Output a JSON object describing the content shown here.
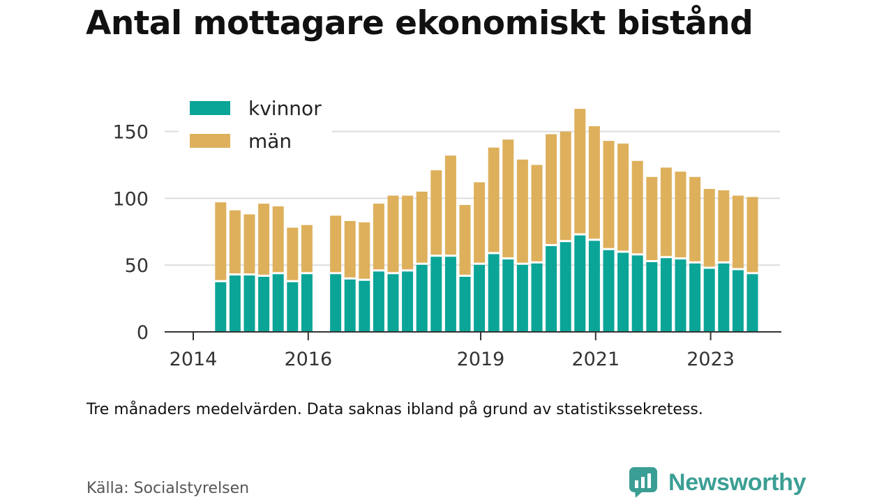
{
  "title": "Antal mottagare ekonomiskt bistånd",
  "note": "Tre månaders medelvärden. Data saknas ibland på grund av statistikssekretess.",
  "source": "Källa: Socialstyrelsen",
  "brand": {
    "name": "Newsworthy",
    "icon": "newsworthy-logo-icon",
    "color": "#3b9e94"
  },
  "colors": {
    "kvinnor": "#0aa597",
    "man": "#deb05c",
    "grid": "#dddddd",
    "axis": "#333333"
  },
  "chart_data": {
    "type": "bar",
    "stacked": true,
    "legend_position": "top-left",
    "grid": true,
    "ylim": [
      0,
      170
    ],
    "yticks": [
      0,
      50,
      100,
      150
    ],
    "xticks": [
      "2014",
      "2016",
      "2019",
      "2021",
      "2023"
    ],
    "legend": [
      "kvinnor",
      "män"
    ],
    "categories": [
      "2014 Q1",
      "2014 Q2",
      "2014 Q3",
      "2014 Q4",
      "2015 Q1",
      "2015 Q2",
      "2015 Q3",
      "2015 Q4",
      "2016 Q1",
      "2016 Q2",
      "2016 Q3",
      "2016 Q4",
      "2017 Q1",
      "2017 Q2",
      "2017 Q3",
      "2017 Q4",
      "2018 Q1",
      "2018 Q2",
      "2018 Q3",
      "2018 Q4",
      "2019 Q1",
      "2019 Q2",
      "2019 Q3",
      "2019 Q4",
      "2020 Q1",
      "2020 Q2",
      "2020 Q3",
      "2020 Q4",
      "2021 Q1",
      "2021 Q2",
      "2021 Q3",
      "2021 Q4",
      "2022 Q1",
      "2022 Q2",
      "2022 Q3",
      "2022 Q4",
      "2023 Q1",
      "2023 Q2",
      "2023 Q3",
      "2023 Q4",
      "2024 Q1"
    ],
    "series": [
      {
        "name": "kvinnor",
        "values": [
          null,
          null,
          null,
          38,
          43,
          43,
          42,
          44,
          38,
          44,
          null,
          44,
          40,
          39,
          46,
          44,
          46,
          51,
          57,
          57,
          42,
          51,
          59,
          55,
          51,
          52,
          65,
          68,
          73,
          69,
          62,
          60,
          58,
          53,
          56,
          55,
          52,
          48,
          52,
          47,
          44
        ]
      },
      {
        "name": "män",
        "values": [
          null,
          null,
          null,
          59,
          48,
          45,
          54,
          50,
          40,
          36,
          null,
          43,
          43,
          43,
          50,
          58,
          56,
          54,
          64,
          75,
          53,
          61,
          79,
          89,
          78,
          73,
          83,
          82,
          94,
          85,
          81,
          81,
          70,
          63,
          67,
          65,
          64,
          59,
          54,
          55,
          57
        ]
      }
    ]
  }
}
